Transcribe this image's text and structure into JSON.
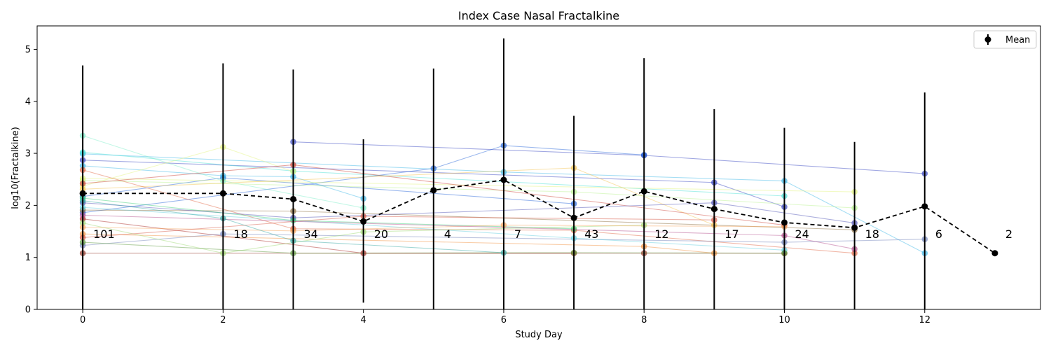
{
  "chart_data": {
    "type": "line",
    "title": "Index Case Nasal Fractalkine",
    "xlabel": "Study Day",
    "ylabel": "log10(Fractalkine)",
    "xlim": [
      -0.65,
      13.65
    ],
    "ylim": [
      0,
      5.45
    ],
    "x_ticks": [
      0,
      2,
      4,
      6,
      8,
      10,
      12
    ],
    "y_ticks": [
      0,
      1,
      2,
      3,
      4,
      5
    ],
    "grid": false,
    "legend": {
      "placement": "top-right",
      "entries": [
        "Mean"
      ]
    },
    "series": [
      {
        "name": "Mean",
        "style": "black dashed with error bars",
        "x": [
          0,
          2,
          3,
          4,
          5,
          6,
          7,
          8,
          9,
          10,
          11,
          12,
          13
        ],
        "y": [
          2.23,
          2.23,
          2.12,
          1.69,
          2.29,
          2.49,
          1.76,
          2.27,
          1.93,
          1.67,
          1.57,
          1.98,
          1.08
        ],
        "err_low": [
          0.0,
          0.0,
          0.0,
          0.13,
          0.0,
          0.0,
          0.0,
          0.0,
          0.0,
          0.0,
          0.0,
          0.0,
          1.08
        ],
        "err_high": [
          4.69,
          4.73,
          4.61,
          3.27,
          4.63,
          5.21,
          3.72,
          4.83,
          3.85,
          3.49,
          3.22,
          4.17,
          1.08
        ],
        "n": [
          101,
          18,
          34,
          20,
          4,
          7,
          43,
          12,
          17,
          24,
          18,
          6,
          2
        ]
      }
    ],
    "individual_trajectories": [
      {
        "color": "#2e3dbf",
        "x": [
          3,
          8,
          12
        ],
        "y": [
          3.22,
          2.96,
          2.61
        ]
      },
      {
        "color": "#2e3dbf",
        "x": [
          0,
          9,
          10
        ],
        "y": [
          2.87,
          2.44,
          1.97
        ]
      },
      {
        "color": "#1e5fd6",
        "x": [
          0,
          5,
          6,
          8
        ],
        "y": [
          1.86,
          2.71,
          3.15,
          2.97
        ]
      },
      {
        "color": "#1e5fd6",
        "x": [
          0,
          2,
          7
        ],
        "y": [
          2.17,
          2.53,
          2.03
        ]
      },
      {
        "color": "#39b6e6",
        "x": [
          0,
          6,
          10,
          12
        ],
        "y": [
          2.99,
          2.64,
          2.47,
          1.08
        ]
      },
      {
        "color": "#39b6e6",
        "x": [
          0,
          2,
          3,
          4
        ],
        "y": [
          2.76,
          2.57,
          2.55,
          2.13
        ]
      },
      {
        "color": "#45e0d4",
        "x": [
          0,
          3,
          10
        ],
        "y": [
          3.02,
          2.66,
          2.18
        ]
      },
      {
        "color": "#7aeec7",
        "x": [
          0,
          2,
          4
        ],
        "y": [
          3.34,
          2.47,
          1.95
        ]
      },
      {
        "color": "#b7f28f",
        "x": [
          0,
          7,
          11
        ],
        "y": [
          2.48,
          2.26,
          1.95
        ]
      },
      {
        "color": "#e3f57c",
        "x": [
          0,
          2,
          3
        ],
        "y": [
          2.37,
          3.12,
          2.65
        ]
      },
      {
        "color": "#e3f57c",
        "x": [
          0,
          11
        ],
        "y": [
          2.52,
          2.26
        ]
      },
      {
        "color": "#f5c04a",
        "x": [
          0,
          7,
          9
        ],
        "y": [
          2.31,
          2.72,
          1.62
        ]
      },
      {
        "color": "#f28f3a",
        "x": [
          0,
          8,
          9
        ],
        "y": [
          1.45,
          1.21,
          1.08
        ]
      },
      {
        "color": "#e0623e",
        "x": [
          0,
          3,
          7,
          11
        ],
        "y": [
          2.68,
          1.55,
          1.52,
          1.08
        ]
      },
      {
        "color": "#c93a2e",
        "x": [
          0,
          3,
          10
        ],
        "y": [
          2.42,
          2.78,
          1.62
        ]
      },
      {
        "color": "#a8231f",
        "x": [
          0,
          4,
          7
        ],
        "y": [
          1.74,
          1.08,
          1.08
        ]
      },
      {
        "color": "#8b2a1a",
        "x": [
          0,
          8,
          10
        ],
        "y": [
          1.08,
          1.08,
          1.08
        ]
      },
      {
        "color": "#8a6a3a",
        "x": [
          0,
          3,
          11
        ],
        "y": [
          1.91,
          1.89,
          1.53
        ]
      },
      {
        "color": "#6d7fb8",
        "x": [
          0,
          2,
          10,
          12
        ],
        "y": [
          1.23,
          1.45,
          1.29,
          1.35
        ]
      },
      {
        "color": "#4a4db3",
        "x": [
          0,
          3,
          9,
          11
        ],
        "y": [
          2.05,
          1.76,
          2.05,
          1.66
        ]
      },
      {
        "color": "#5fcfe0",
        "x": [
          0,
          7,
          10
        ],
        "y": [
          1.96,
          1.37,
          1.14
        ]
      },
      {
        "color": "#3ad17a",
        "x": [
          0,
          3,
          7
        ],
        "y": [
          2.14,
          1.71,
          1.55
        ]
      },
      {
        "color": "#9cd96e",
        "x": [
          0,
          2,
          4,
          8
        ],
        "y": [
          1.66,
          1.08,
          1.49,
          1.62
        ]
      },
      {
        "color": "#f7a35a",
        "x": [
          0,
          3,
          6,
          10
        ],
        "y": [
          1.58,
          1.51,
          1.62,
          1.59
        ]
      },
      {
        "color": "#d4513e",
        "x": [
          0,
          4,
          9
        ],
        "y": [
          1.38,
          1.79,
          1.72
        ]
      },
      {
        "color": "#b24a8a",
        "x": [
          0,
          10,
          11
        ],
        "y": [
          1.81,
          1.42,
          1.16
        ]
      },
      {
        "color": "#5a9a3a",
        "x": [
          0,
          3,
          7,
          10
        ],
        "y": [
          1.29,
          1.08,
          1.09,
          1.08
        ]
      },
      {
        "color": "#2fa3a0",
        "x": [
          0,
          2,
          3,
          6
        ],
        "y": [
          2.09,
          1.75,
          1.32,
          1.09
        ]
      }
    ],
    "left_labels": [
      "101"
    ],
    "count_labels": [
      "101",
      "18",
      "34",
      "20",
      "4",
      "7",
      "43",
      "12",
      "17",
      "24",
      "18",
      "6",
      "2"
    ]
  }
}
